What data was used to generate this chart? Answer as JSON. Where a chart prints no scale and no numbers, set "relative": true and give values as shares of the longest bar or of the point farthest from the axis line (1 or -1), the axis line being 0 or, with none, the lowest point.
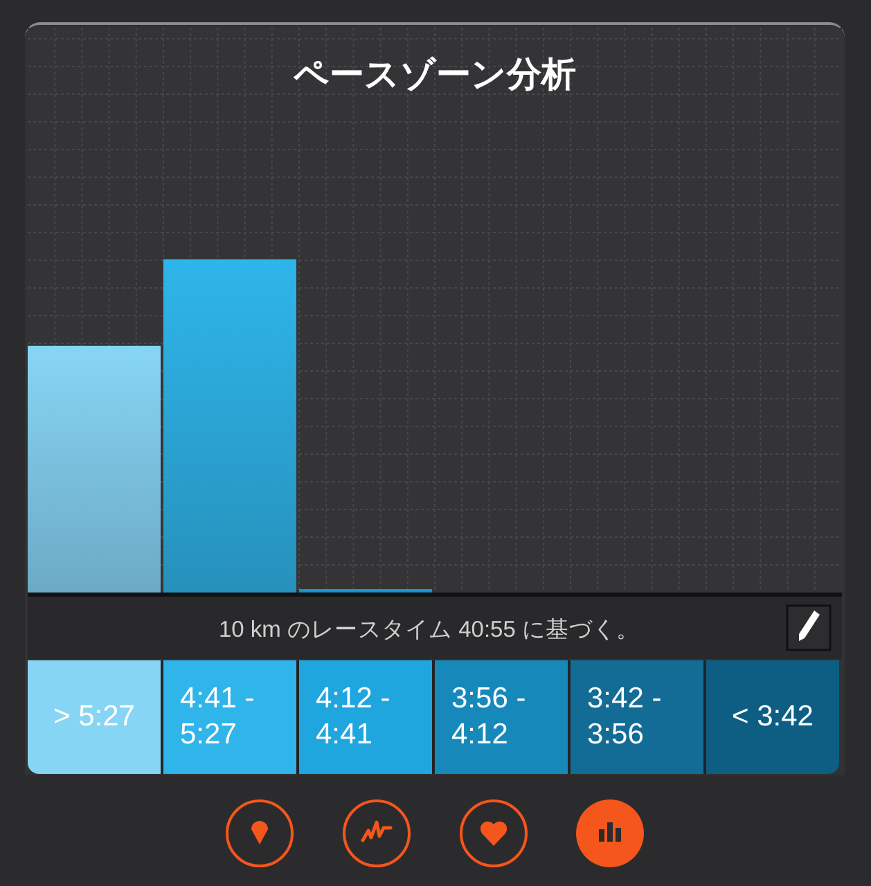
{
  "chart_data": {
    "type": "bar",
    "title": "ペースゾーン分析",
    "categories": [
      "> 5:27",
      "4:41 - 5:27",
      "4:12 - 4:41",
      "3:56 - 4:12",
      "3:42 - 3:56",
      "< 3:42"
    ],
    "values": [
      0.74,
      1,
      0.01,
      0,
      0,
      0
    ],
    "colors": [
      "#87d5f5",
      "#2fb5ea",
      "#1fa6df",
      "#1788ba",
      "#136c96",
      "#0e5e84"
    ],
    "relative": true,
    "grid": true,
    "annotations": [
      "10 km のレースタイム 40:55 に基づく。"
    ]
  }
}
